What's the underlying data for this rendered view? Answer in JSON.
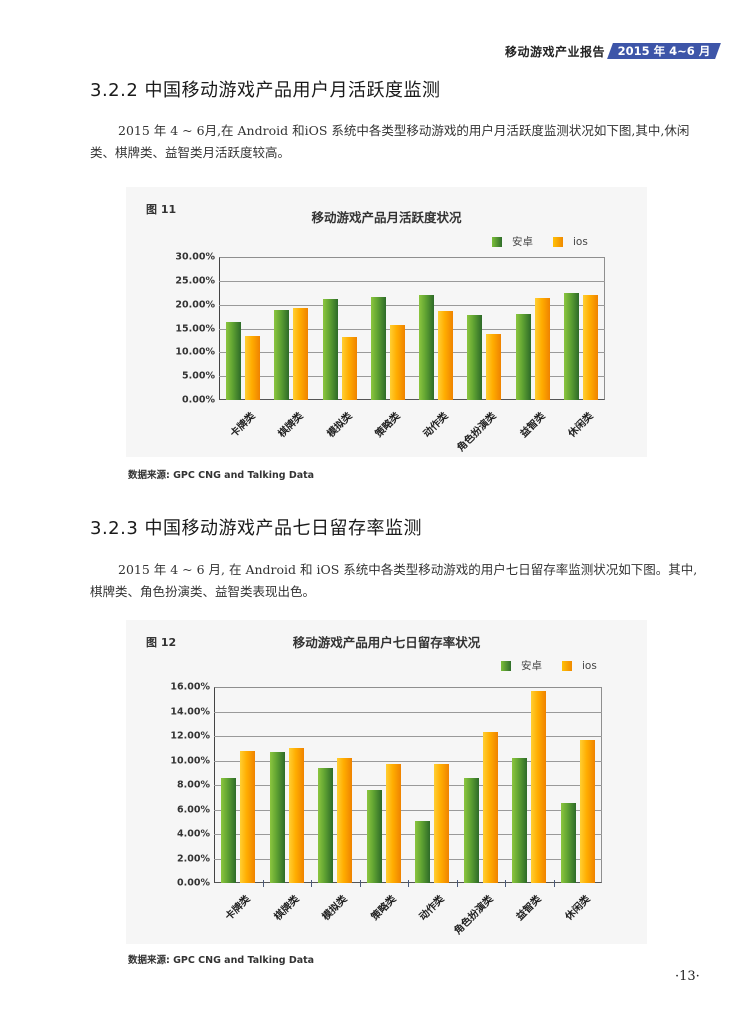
{
  "header": {
    "report_title": "移动游戏产业报告",
    "period_badge": "2015 年 4~6 月",
    "badge_color": "#3d55a8"
  },
  "section1": {
    "title": "3.2.2  中国移动游戏产品用户月活跃度监测",
    "paragraph": "2015 年 4 ~ 6月,在 Android 和iOS 系统中各类型移动游戏的用户月活跃度监测状况如下图,其中,休闲类、棋牌类、益智类月活跃度较高。"
  },
  "figure1": {
    "label": "图 11",
    "title": "移动游戏产品月活跃度状况",
    "legend": [
      "安卓",
      "ios"
    ],
    "source": "数据来源: GPC CNG and Talking Data"
  },
  "section2": {
    "title": "3.2.3 中国移动游戏产品七日留存率监测",
    "paragraph": "2015 年 4 ~ 6 月, 在 Android 和 iOS 系统中各类型移动游戏的用户七日留存率监测状况如下图。其中, 棋牌类、角色扮演类、益智类表现出色。"
  },
  "figure2": {
    "label": "图 12",
    "title": "移动游戏产品用户七日留存率状况",
    "legend": [
      "安卓",
      "ios"
    ],
    "source": "数据来源: GPC CNG and Talking Data"
  },
  "page_number": "·13·",
  "colors": {
    "android": "#5fa232",
    "ios": "#ffad00"
  },
  "chart_data": [
    {
      "type": "bar",
      "title": "移动游戏产品月活跃度状况",
      "xlabel": "",
      "ylabel": "",
      "categories": [
        "卡牌类",
        "棋牌类",
        "模拟类",
        "策略类",
        "动作类",
        "角色扮演类",
        "益智类",
        "休闲类"
      ],
      "series": [
        {
          "name": "安卓",
          "values": [
            16.3,
            18.8,
            21.1,
            21.6,
            22.0,
            17.9,
            18.1,
            22.5
          ]
        },
        {
          "name": "ios",
          "values": [
            13.5,
            19.2,
            13.3,
            15.8,
            18.6,
            13.8,
            21.3,
            22.1
          ]
        }
      ],
      "ylim": [
        0,
        30
      ],
      "yticks": [
        "0.00%",
        "5.00%",
        "10.00%",
        "15.00%",
        "20.00%",
        "25.00%",
        "30.00%"
      ],
      "grid": true,
      "legend_position": "top-right"
    },
    {
      "type": "bar",
      "title": "移动游戏产品用户七日留存率状况",
      "xlabel": "",
      "ylabel": "",
      "categories": [
        "卡牌类",
        "棋牌类",
        "模拟类",
        "策略类",
        "动作类",
        "角色扮演类",
        "益智类",
        "休闲类"
      ],
      "series": [
        {
          "name": "安卓",
          "values": [
            8.6,
            10.7,
            9.4,
            7.6,
            5.1,
            8.6,
            10.2,
            6.5
          ]
        },
        {
          "name": "ios",
          "values": [
            10.8,
            11.0,
            10.2,
            9.7,
            9.7,
            12.3,
            15.7,
            11.7
          ]
        }
      ],
      "ylim": [
        0,
        16
      ],
      "yticks": [
        "0.00%",
        "2.00%",
        "4.00%",
        "6.00%",
        "8.00%",
        "10.00%",
        "12.00%",
        "14.00%",
        "16.00%"
      ],
      "grid": true,
      "legend_position": "top-right"
    }
  ]
}
